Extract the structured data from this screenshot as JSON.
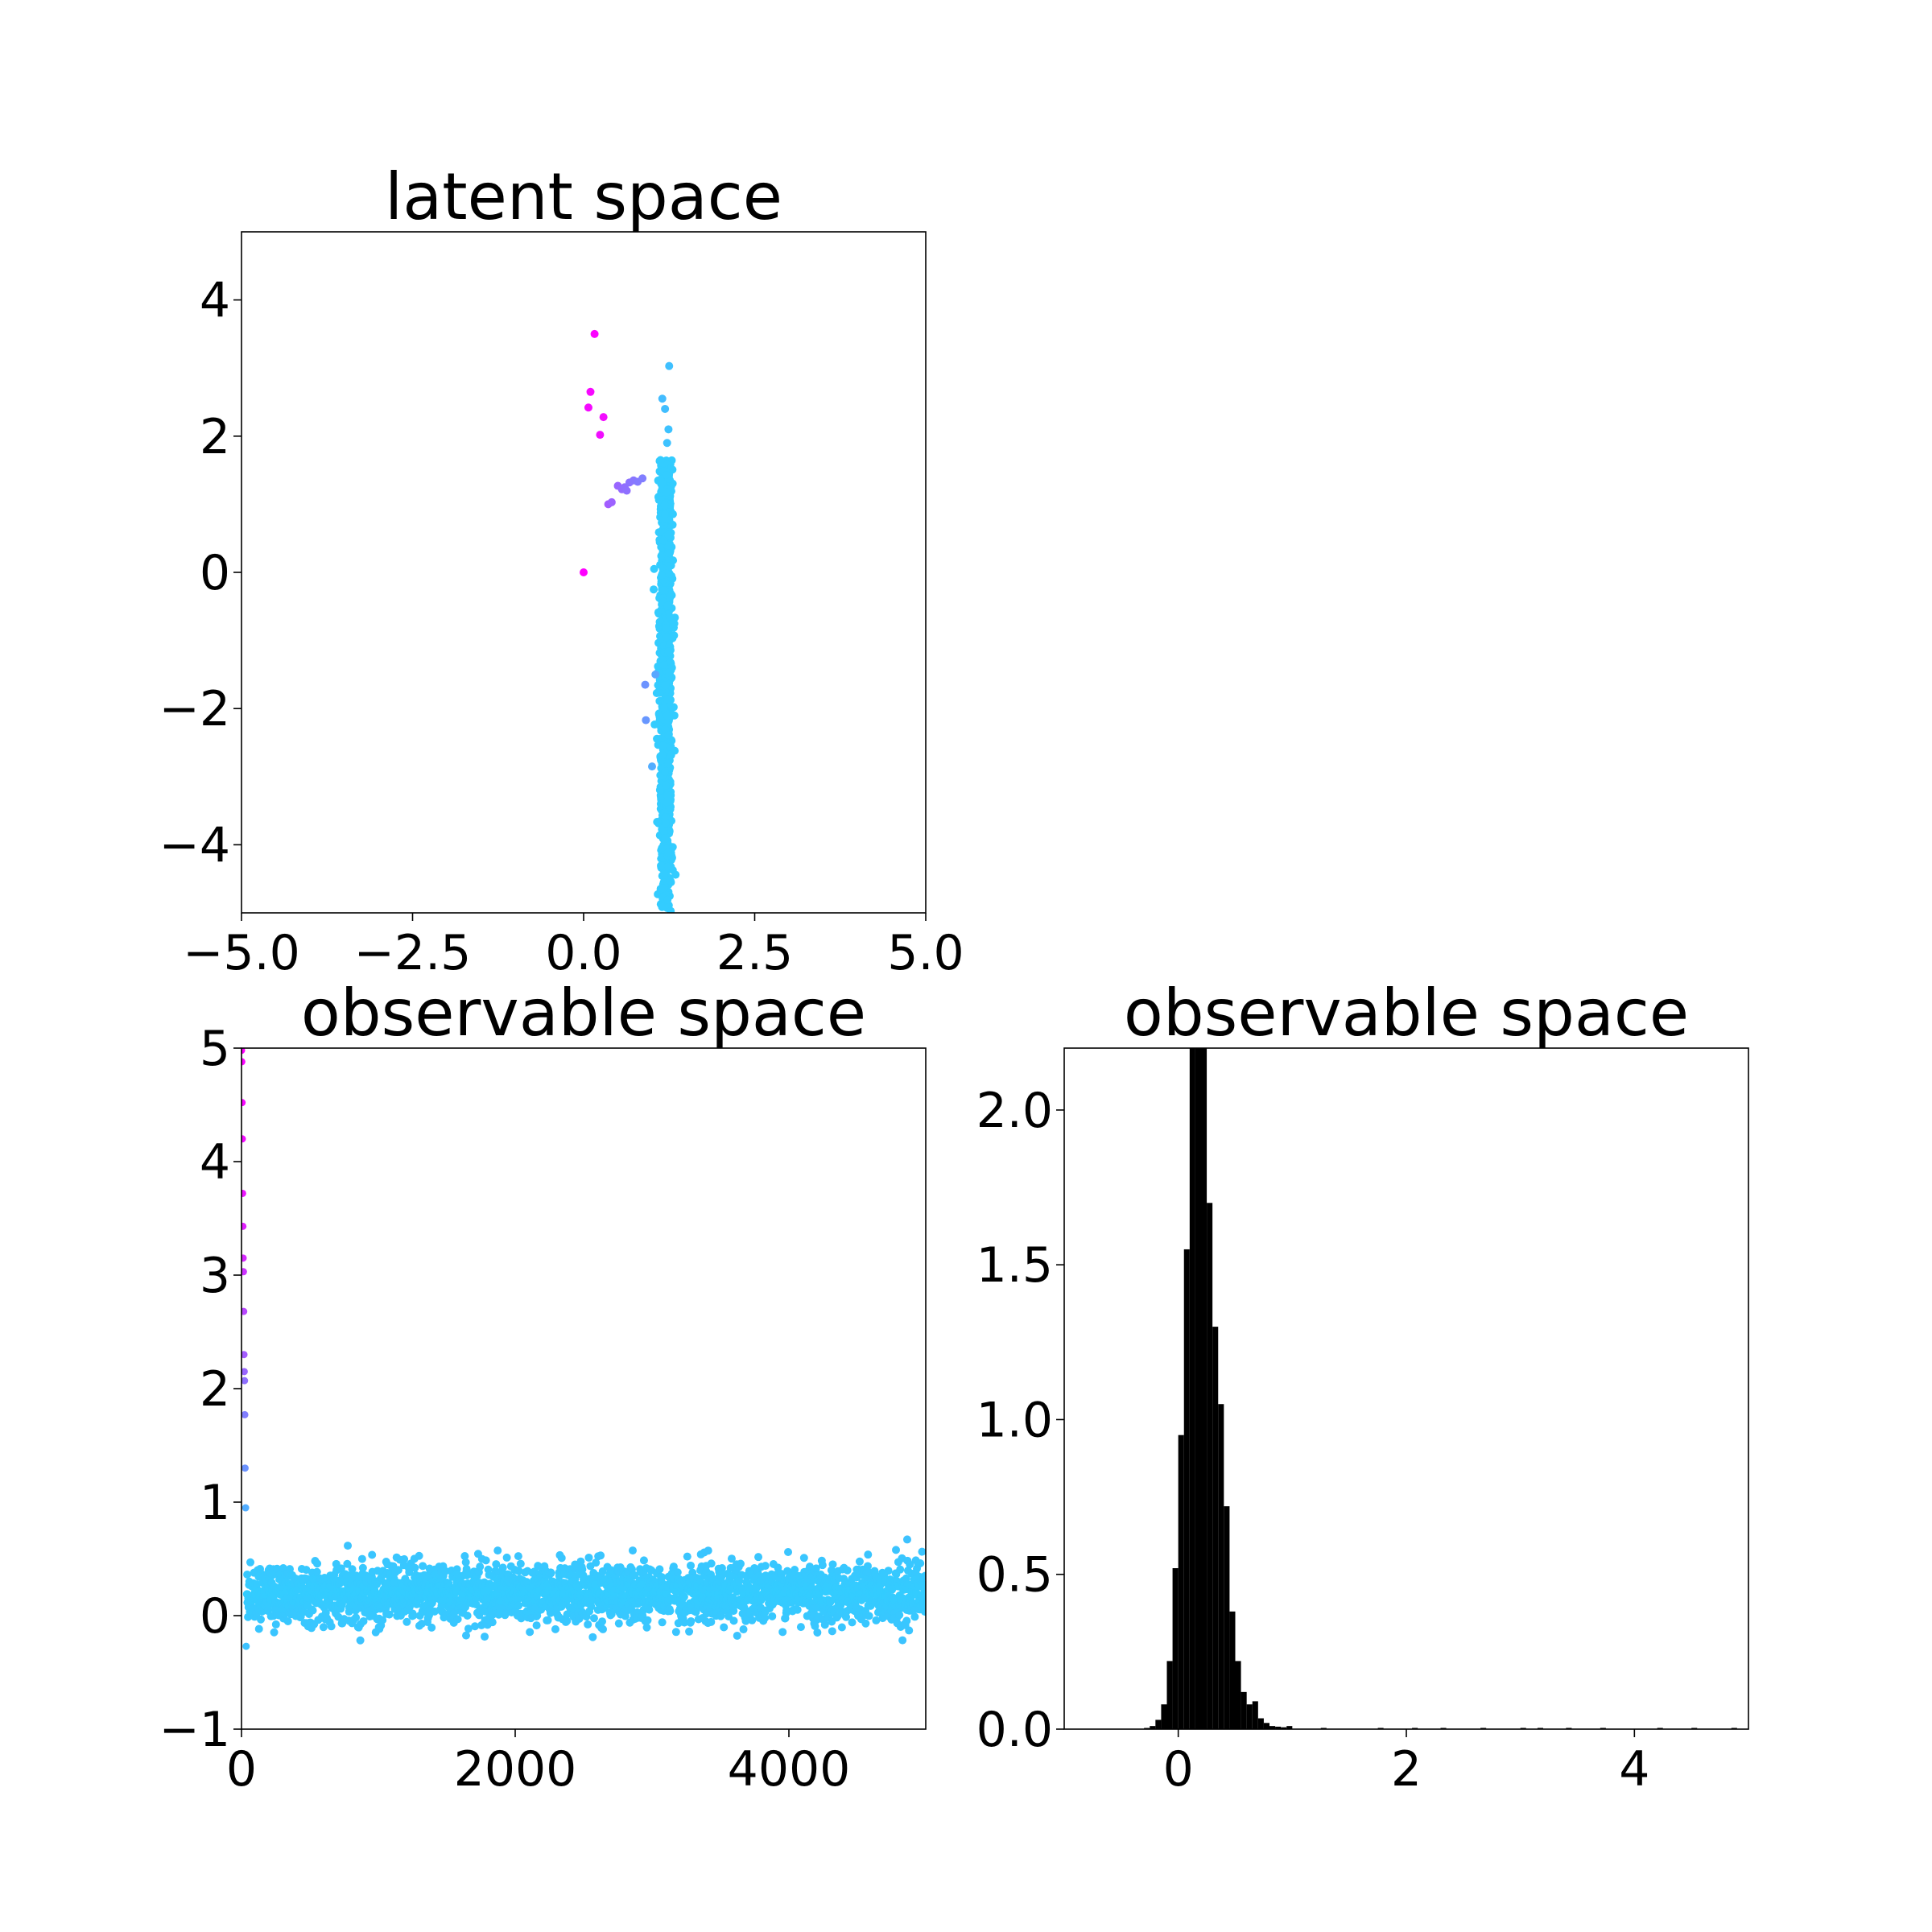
{
  "chart_data": [
    {
      "id": "latent",
      "type": "scatter",
      "title": "latent space",
      "xlabel": "",
      "ylabel": "",
      "xlim": [
        -5,
        5
      ],
      "ylim": [
        -5,
        5
      ],
      "xticks": [
        -5,
        -2.5,
        0,
        2.5,
        5
      ],
      "xtick_labels": [
        "−5.0",
        "−2.5",
        "0.0",
        "2.5",
        "5.0"
      ],
      "yticks": [
        -4,
        -2,
        0,
        2,
        4
      ],
      "ytick_labels": [
        "−4",
        "−2",
        "0",
        "2",
        "4"
      ],
      "grid": false,
      "colormap": [
        "#ff00ff",
        "#33ccff"
      ],
      "colormap_name": "cool",
      "points": [
        {
          "x": 0.0,
          "y": 0.0,
          "c": 0.0
        },
        {
          "x": 0.16,
          "y": 3.5,
          "c": 0.02
        },
        {
          "x": 0.1,
          "y": 2.65,
          "c": 0.04
        },
        {
          "x": 0.07,
          "y": 2.42,
          "c": 0.05
        },
        {
          "x": 0.29,
          "y": 2.28,
          "c": 0.06
        },
        {
          "x": 0.24,
          "y": 2.02,
          "c": 0.07
        },
        {
          "x": 0.36,
          "y": 1.0,
          "c": 0.45
        },
        {
          "x": 0.41,
          "y": 1.03,
          "c": 0.48
        },
        {
          "x": 0.5,
          "y": 1.27,
          "c": 0.5
        },
        {
          "x": 0.56,
          "y": 1.22,
          "c": 0.52
        },
        {
          "x": 0.6,
          "y": 1.25,
          "c": 0.54
        },
        {
          "x": 0.63,
          "y": 1.2,
          "c": 0.55
        },
        {
          "x": 0.67,
          "y": 1.32,
          "c": 0.56
        },
        {
          "x": 0.73,
          "y": 1.35,
          "c": 0.58
        },
        {
          "x": 0.79,
          "y": 1.33,
          "c": 0.6
        },
        {
          "x": 0.86,
          "y": 1.38,
          "c": 0.62
        },
        {
          "x": 0.9,
          "y": -1.65,
          "c": 0.72
        },
        {
          "x": 0.91,
          "y": -2.17,
          "c": 0.74
        },
        {
          "x": 1.05,
          "y": -1.5,
          "c": 0.82
        },
        {
          "x": 1.0,
          "y": -2.85,
          "c": 0.85
        },
        {
          "x": 1.15,
          "y": 2.55,
          "c": 0.92
        },
        {
          "x": 1.19,
          "y": 2.4,
          "c": 0.93
        },
        {
          "x": 1.25,
          "y": 3.03,
          "c": 0.94
        },
        {
          "x": 1.24,
          "y": 2.1,
          "c": 0.95
        },
        {
          "x": 1.22,
          "y": 1.9,
          "c": 0.95
        }
      ],
      "dense_cluster": {
        "x_center": 1.2,
        "x_spread": 0.06,
        "y_from": -5,
        "y_to": 1.65,
        "c": 1.0
      }
    },
    {
      "id": "observable-scatter",
      "type": "scatter",
      "title": "observable space",
      "xlabel": "",
      "ylabel": "",
      "xlim": [
        0,
        5000
      ],
      "ylim": [
        -1,
        5
      ],
      "xticks": [
        0,
        2000,
        4000
      ],
      "xtick_labels": [
        "0",
        "2000",
        "4000"
      ],
      "yticks": [
        -1,
        0,
        1,
        2,
        3,
        4,
        5
      ],
      "ytick_labels": [
        "−1",
        "0",
        "1",
        "2",
        "3",
        "4",
        "5"
      ],
      "grid": false,
      "points": [
        {
          "x": 0,
          "y": 4.98,
          "c": 0.0
        },
        {
          "x": 2,
          "y": 4.88,
          "c": 0.02
        },
        {
          "x": 4,
          "y": 4.52,
          "c": 0.04
        },
        {
          "x": 6,
          "y": 4.2,
          "c": 0.06
        },
        {
          "x": 8,
          "y": 3.72,
          "c": 0.1
        },
        {
          "x": 10,
          "y": 3.43,
          "c": 0.15
        },
        {
          "x": 12,
          "y": 3.15,
          "c": 0.2
        },
        {
          "x": 14,
          "y": 3.03,
          "c": 0.25
        },
        {
          "x": 16,
          "y": 2.68,
          "c": 0.35
        },
        {
          "x": 18,
          "y": 2.3,
          "c": 0.45
        },
        {
          "x": 20,
          "y": 2.15,
          "c": 0.5
        },
        {
          "x": 22,
          "y": 2.07,
          "c": 0.55
        },
        {
          "x": 24,
          "y": 1.77,
          "c": 0.62
        },
        {
          "x": 26,
          "y": 1.3,
          "c": 0.72
        },
        {
          "x": 30,
          "y": 0.95,
          "c": 0.85
        },
        {
          "x": 34,
          "y": -0.27,
          "c": 0.95
        }
      ],
      "noise_series": {
        "x_from": 40,
        "x_to": 5000,
        "mean": 0.2,
        "sd": 0.13,
        "min": -0.22,
        "max": 0.97,
        "c": 1.0
      }
    },
    {
      "id": "observable-hist",
      "type": "bar",
      "title": "observable space",
      "xlabel": "",
      "ylabel": "",
      "xlim": [
        -1,
        5
      ],
      "ylim": [
        0,
        2.2
      ],
      "xticks": [
        0,
        2,
        4
      ],
      "xtick_labels": [
        "0",
        "2",
        "4"
      ],
      "yticks": [
        0,
        0.5,
        1,
        1.5,
        2
      ],
      "ytick_labels": [
        "0.0",
        "0.5",
        "1.0",
        "1.5",
        "2.0"
      ],
      "grid": false,
      "bar_color": "#000000",
      "bin_width": 0.05,
      "bins": [
        {
          "x": -0.3,
          "h": 0.002
        },
        {
          "x": -0.25,
          "h": 0.01
        },
        {
          "x": -0.2,
          "h": 0.03
        },
        {
          "x": -0.15,
          "h": 0.08
        },
        {
          "x": -0.1,
          "h": 0.22
        },
        {
          "x": -0.05,
          "h": 0.52
        },
        {
          "x": 0.0,
          "h": 0.95
        },
        {
          "x": 0.05,
          "h": 1.55
        },
        {
          "x": 0.1,
          "h": 2.3
        },
        {
          "x": 0.15,
          "h": 2.3
        },
        {
          "x": 0.2,
          "h": 2.3
        },
        {
          "x": 0.25,
          "h": 1.7
        },
        {
          "x": 0.3,
          "h": 1.3
        },
        {
          "x": 0.35,
          "h": 1.05
        },
        {
          "x": 0.4,
          "h": 0.72
        },
        {
          "x": 0.45,
          "h": 0.38
        },
        {
          "x": 0.5,
          "h": 0.22
        },
        {
          "x": 0.55,
          "h": 0.12
        },
        {
          "x": 0.6,
          "h": 0.08
        },
        {
          "x": 0.65,
          "h": 0.09
        },
        {
          "x": 0.7,
          "h": 0.035
        },
        {
          "x": 0.75,
          "h": 0.02
        },
        {
          "x": 0.8,
          "h": 0.01
        },
        {
          "x": 0.85,
          "h": 0.008
        },
        {
          "x": 0.9,
          "h": 0.006
        },
        {
          "x": 0.95,
          "h": 0.01
        },
        {
          "x": 1.25,
          "h": 0.004
        },
        {
          "x": 1.75,
          "h": 0.004
        },
        {
          "x": 2.05,
          "h": 0.004
        },
        {
          "x": 2.3,
          "h": 0.004
        },
        {
          "x": 2.65,
          "h": 0.004
        },
        {
          "x": 3.0,
          "h": 0.004
        },
        {
          "x": 3.15,
          "h": 0.004
        },
        {
          "x": 3.4,
          "h": 0.004
        },
        {
          "x": 3.7,
          "h": 0.004
        },
        {
          "x": 4.2,
          "h": 0.004
        },
        {
          "x": 4.5,
          "h": 0.004
        },
        {
          "x": 4.85,
          "h": 0.004
        }
      ]
    }
  ]
}
